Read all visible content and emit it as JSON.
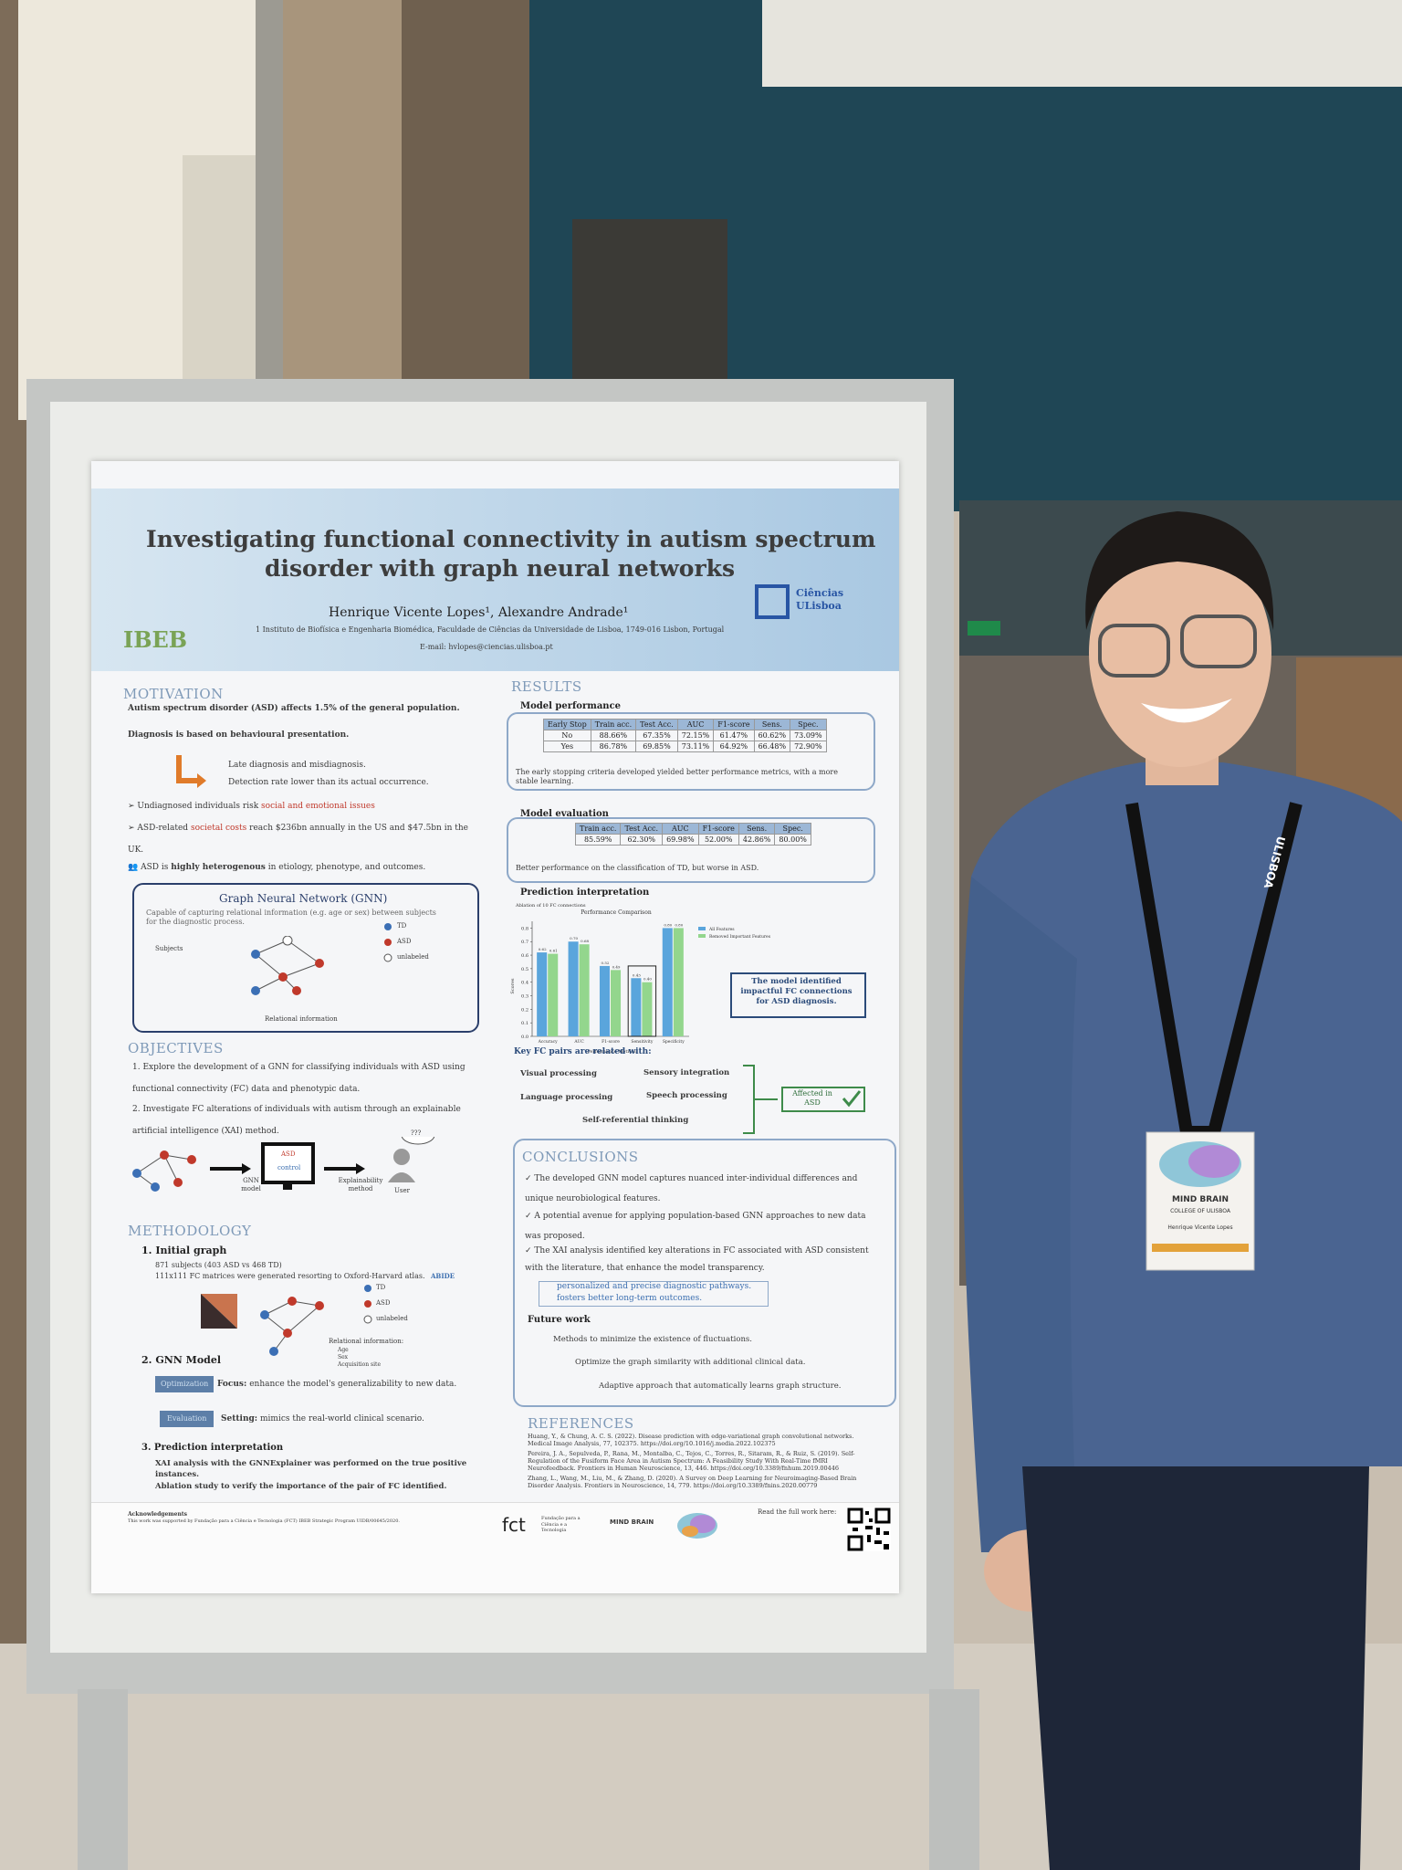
{
  "header": {
    "title": [
      "Investigating functional connectivity in autism spectrum",
      "disorder with graph neural networks"
    ],
    "authors": "Henrique Vicente Lopes¹, Alexandre Andrade¹",
    "affiliation": "1 Instituto de Biofísica e Engenharia Biomédica, Faculdade de Ciências da Universidade de Lisboa, 1749-016 Lisbon, Portugal",
    "email": "E-mail: hvlopes@ciencias.ulisboa.pt",
    "logo_left": "IBEB",
    "logo_right": [
      "Ciências",
      "ULisboa"
    ]
  },
  "motivation": {
    "heading": "MOTIVATION",
    "prevalence": "Autism spectrum disorder (ASD) affects 1.5% of the general population.",
    "diagnosis": "Diagnosis is based on behavioural presentation.",
    "consequences": [
      "Late diagnosis and misdiagnosis.",
      "Detection rate lower than its actual occurrence."
    ],
    "risk": [
      "Undiagnosed individuals risk",
      "social and emotional issues"
    ],
    "costs": [
      "ASD-related",
      "societal costs",
      "reach $236bn annually in the US and $47.5bn in the UK."
    ],
    "heterogeneity": [
      "ASD is",
      "highly heterogenous",
      "in etiology, phenotype, and outcomes."
    ]
  },
  "gnn": {
    "heading": "Graph Neural Network (GNN)",
    "text": "Capable of capturing relational information (e.g. age or sex) between subjects for the diagnostic process.",
    "subjects": "Subjects",
    "legend": [
      "TD",
      "ASD",
      "unlabeled"
    ],
    "relational": "Relational information"
  },
  "objectives": {
    "heading": "OBJECTIVES",
    "items": [
      "1. Explore the development of a GNN for classifying individuals with ASD using functional connectivity (FC) data and phenotypic data.",
      "2. Investigate FC alterations of individuals with autism through an explainable artificial intelligence (XAI) method."
    ],
    "diagram": {
      "monitor": [
        "ASD",
        "control"
      ],
      "model": "GNN model",
      "method": "Explainability method",
      "user": "User",
      "bubble": "???"
    }
  },
  "methodology": {
    "heading": "METHODOLOGY",
    "initial_graph": {
      "title": "1. Initial graph",
      "subjects": "871 subjects (403 ASD vs 468 TD)",
      "matrices": "111x111 FC matrices were generated resorting to Oxford-Harvard atlas.",
      "atlas": "ABIDE",
      "legend": [
        "TD",
        "ASD",
        "unlabeled"
      ],
      "relational": "Relational information:",
      "attributes": [
        "Age",
        "Sex",
        "Acquisition site"
      ]
    },
    "gnn_model": {
      "title": "2. GNN Model",
      "optimization": "Optimization",
      "focus": [
        "Focus:",
        "enhance the model's generalizability to new data."
      ],
      "evaluation": "Evaluation",
      "setting": [
        "Setting:",
        "mimics the real-world clinical scenario."
      ]
    },
    "interpretation": {
      "title": "3. Prediction interpretation",
      "items": [
        "XAI analysis with the GNNExplainer was performed on the true positive instances.",
        "Ablation study to verify the importance of the pair of FC identified."
      ]
    }
  },
  "results": {
    "heading": "RESULTS",
    "performance": {
      "title": "Model performance",
      "columns": [
        "Early Stop",
        "Train acc.",
        "Test Acc.",
        "AUC",
        "F1-score",
        "Sens.",
        "Spec."
      ],
      "rows": [
        [
          "No",
          "88.66%",
          "67.35%",
          "72.15%",
          "61.47%",
          "60.62%",
          "73.09%"
        ],
        [
          "Yes",
          "86.78%",
          "69.85%",
          "73.11%",
          "64.92%",
          "66.48%",
          "72.90%"
        ]
      ],
      "note": "The early stopping criteria developed yielded better performance metrics, with a more stable learning."
    },
    "evaluation": {
      "title": "Model evaluation",
      "columns": [
        "Train acc.",
        "Test Acc.",
        "AUC",
        "F1-score",
        "Sens.",
        "Spec."
      ],
      "row": [
        "85.59%",
        "62.30%",
        "69.98%",
        "52.00%",
        "42.86%",
        "80.00%"
      ],
      "note": "Better performance on the classification of TD, but worse in ASD."
    },
    "interpretation": {
      "title": "Prediction interpretation",
      "chart": {
        "type": "bar",
        "subtitle": "Ablation of 10 FC connections",
        "title": "Performance Comparison",
        "categories": [
          "Accuracy",
          "AUC",
          "F1-score",
          "Sensitivity",
          "Specificity"
        ],
        "series": [
          {
            "name": "All Features",
            "color": "#5aa5dc",
            "values": [
              0.62,
              0.7,
              0.52,
              0.43,
              0.8
            ],
            "value_labels": [
              "0.62",
              "0.70",
              "0.52",
              "0.43",
              "0.80"
            ]
          },
          {
            "name": "Removed Important Features",
            "color": "#93d68d",
            "values": [
              0.61,
              0.68,
              0.49,
              0.4,
              0.8
            ],
            "value_labels": [
              "0.61",
              "0.68",
              "0.49",
              "0.40",
              "0.80"
            ]
          }
        ],
        "xlabel": "Performance Metrics",
        "ylabel": "Scores",
        "ylim": [
          0,
          0.85
        ],
        "yticks": [
          {
            "value": 0,
            "label": "0.0"
          },
          {
            "value": 0.1,
            "label": "0.1"
          },
          {
            "value": 0.2,
            "label": "0.2"
          },
          {
            "value": 0.3,
            "label": "0.3"
          },
          {
            "value": 0.4,
            "label": "0.4"
          },
          {
            "value": 0.5,
            "label": "0.5"
          },
          {
            "value": 0.6,
            "label": "0.6"
          },
          {
            "value": 0.7,
            "label": "0.7"
          },
          {
            "value": 0.8,
            "label": "0.8"
          }
        ]
      },
      "finding": "The model identified impactful FC connections for ASD diagnosis.",
      "key_pairs": "Key FC pairs are related with:",
      "functions": [
        "Visual processing",
        "Sensory integration",
        "Language processing",
        "Speech processing",
        "Self-referential thinking"
      ],
      "affected": "Affected in ASD"
    }
  },
  "conclusions": {
    "heading": "CONCLUSIONS",
    "items": [
      "The developed GNN model captures nuanced inter-individual differences and unique neurobiological features.",
      "A potential avenue for applying population-based GNN approaches to new data was proposed.",
      "The XAI analysis identified key alterations in FC associated with ASD consistent with the literature, that enhance the model transparency."
    ],
    "impact": [
      "personalized and precise diagnostic pathways.",
      "fosters better long-term outcomes."
    ],
    "future_title": "Future work",
    "future": [
      "Methods to minimize the existence of fluctuations.",
      "Optimize the graph similarity with additional clinical data.",
      "Adaptive approach that automatically learns graph structure."
    ]
  },
  "references": {
    "heading": "REFERENCES",
    "items": [
      "Huang, Y., & Chung, A. C. S. (2022). Disease prediction with edge-variational graph convolutional networks. Medical Image Analysis, 77, 102375. https://doi.org/10.1016/j.media.2022.102375",
      "Pereira, J. A., Sepulveda, P., Rana, M., Montalba, C., Tejos, C., Torres, R., Sitaram, R., & Ruiz, S. (2019). Self-Regulation of the Fusiform Face Area in Autism Spectrum: A Feasibility Study With Real-Time fMRI Neurofeedback. Frontiers in Human Neuroscience, 13, 446. https://doi.org/10.3389/fnhum.2019.00446",
      "Zhang, L., Wang, M., Liu, M., & Zhang, D. (2020). A Survey on Deep Learning for Neuroimaging-Based Brain Disorder Analysis. Frontiers in Neuroscience, 14, 779. https://doi.org/10.3389/fnins.2020.00779"
    ]
  },
  "footer": {
    "acknowledgements": "Acknowledgements",
    "funding": "This work was supported by Fundação para a Ciência e Tecnologia (FCT) IBEB Strategic Program UIDB/00645/2020.",
    "fct": "fct",
    "fct_name": "Fundação para a Ciência e a Tecnologia",
    "event": "MIND BRAIN",
    "read": "Read the full work here:"
  },
  "badge": {
    "event": "MIND BRAIN",
    "college": "COLLEGE OF ULISBOA",
    "name": "Henrique Vicente Lopes"
  },
  "lanyard": "ULISBOA"
}
